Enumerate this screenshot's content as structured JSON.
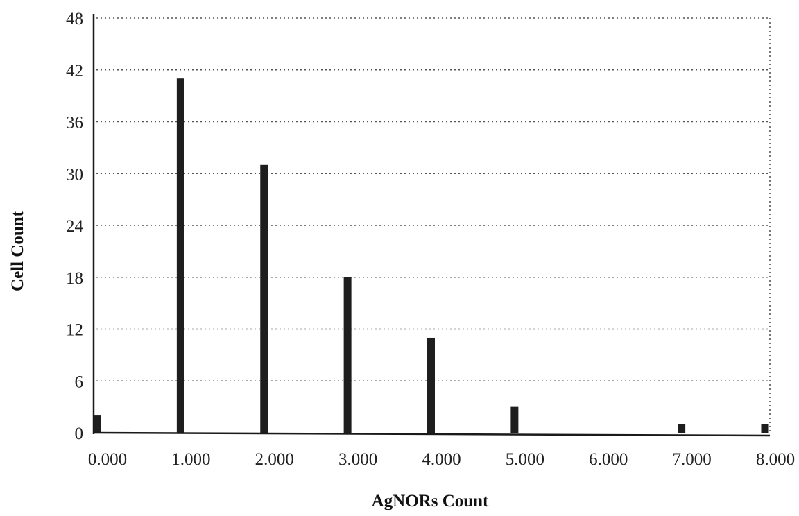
{
  "chart_data": {
    "type": "bar",
    "xlabel": "AgNORs Count",
    "ylabel": "Cell Count",
    "x_ticks": [
      "0.000",
      "1.000",
      "2.000",
      "3.000",
      "4.000",
      "5.000",
      "6.000",
      "7.000",
      "8.000"
    ],
    "y_ticks": [
      "0",
      "6",
      "12",
      "18",
      "24",
      "30",
      "36",
      "42",
      "48"
    ],
    "xlim": [
      0,
      8
    ],
    "ylim": [
      0,
      48
    ],
    "grid": "horizontal dotted",
    "x": [
      0,
      1,
      2,
      3,
      4,
      5,
      7,
      8
    ],
    "values": [
      2,
      41,
      31,
      18,
      11,
      3,
      1,
      1
    ],
    "colors": {
      "bar": "#1e1e1e",
      "axis": "#1a1a1a",
      "grid": "#555555"
    }
  }
}
